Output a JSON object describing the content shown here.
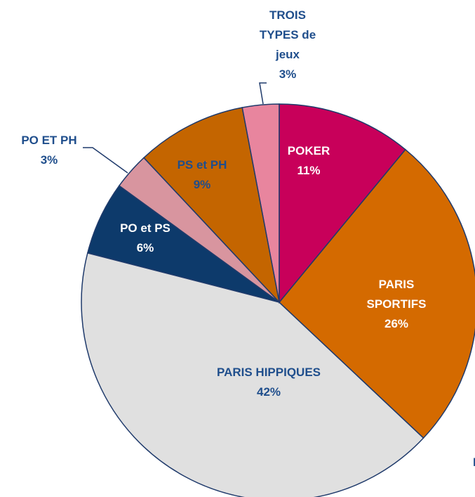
{
  "chart_data": {
    "type": "pie",
    "categories": [
      "POKER",
      "PARIS SPORTIFS",
      "PARIS HIPPIQUES",
      "PO et PS",
      "PO ET PH",
      "PS et PH",
      "TROIS TYPES de jeux"
    ],
    "values": [
      11,
      26,
      42,
      6,
      3,
      9,
      3
    ],
    "value_labels": [
      "11%",
      "26%",
      "42%",
      "6%",
      "3%",
      "9%",
      "3%"
    ],
    "colors": [
      "#c8005a",
      "#d46a00",
      "#e0e0e0",
      "#0d3a6b",
      "#d8959f",
      "#c46500",
      "#e8859e"
    ],
    "annotations": [
      "P"
    ]
  }
}
